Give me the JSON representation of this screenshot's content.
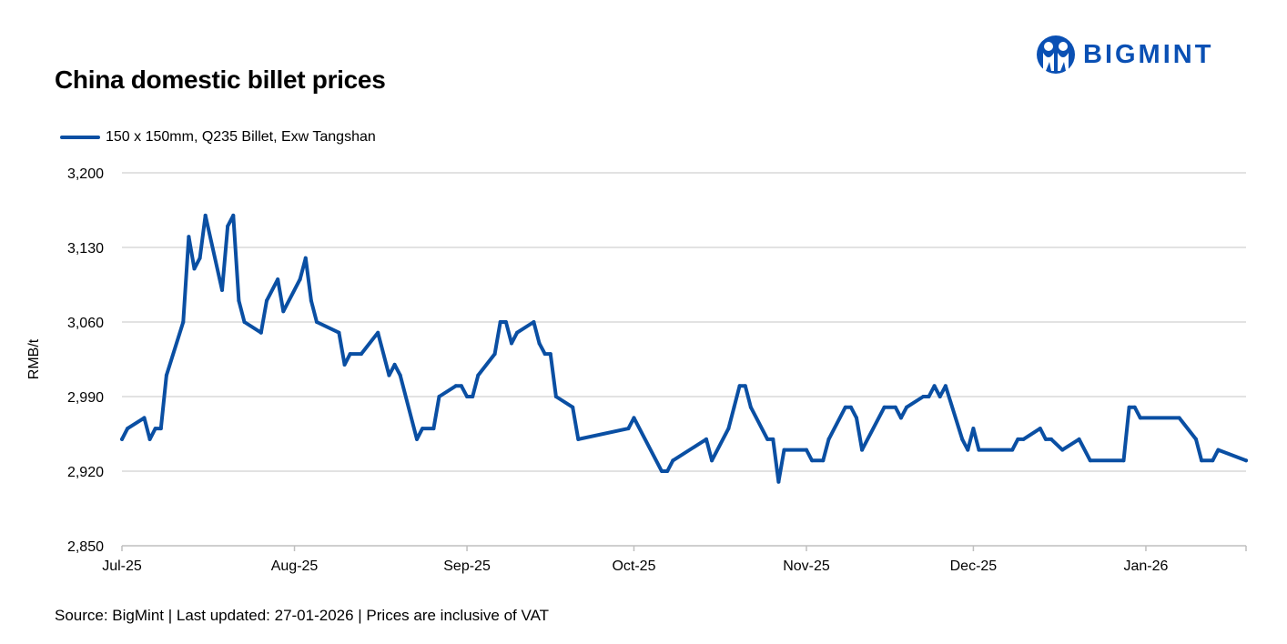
{
  "title": "China domestic billet prices",
  "logo": {
    "text": "BIGMINT",
    "color": "#0a50b4"
  },
  "source": "Source: BigMint | Last updated: 27-01-2026 | Prices are inclusive of VAT",
  "chart_data": {
    "type": "line",
    "title": "China domestic billet prices",
    "ylabel": "RMB/t",
    "xlabel": "",
    "ylim": [
      2850,
      3200
    ],
    "yticks": [
      "2,850",
      "2,920",
      "2,990",
      "3,060",
      "3,130",
      "3,200"
    ],
    "ytick_values": [
      2850,
      2920,
      2990,
      3060,
      3130,
      3200
    ],
    "xlim": [
      "2025-07-01",
      "2026-01-19"
    ],
    "xticks": [
      {
        "date": "2025-07-01",
        "label": "Jul-25"
      },
      {
        "date": "2025-08-01",
        "label": "Aug-25"
      },
      {
        "date": "2025-09-01",
        "label": "Sep-25"
      },
      {
        "date": "2025-10-01",
        "label": "Oct-25"
      },
      {
        "date": "2025-11-01",
        "label": "Nov-25"
      },
      {
        "date": "2025-12-01",
        "label": "Dec-25"
      },
      {
        "date": "2026-01-01",
        "label": "Jan-26"
      }
    ],
    "grid": true,
    "legend_position": "top-left",
    "series": [
      {
        "name": "150 x 150mm, Q235 Billet, Exw Tangshan",
        "color": "#0a4fa3",
        "x": [
          "2025-07-01",
          "2025-07-02",
          "2025-07-05",
          "2025-07-06",
          "2025-07-07",
          "2025-07-08",
          "2025-07-09",
          "2025-07-12",
          "2025-07-13",
          "2025-07-14",
          "2025-07-15",
          "2025-07-16",
          "2025-07-19",
          "2025-07-20",
          "2025-07-21",
          "2025-07-22",
          "2025-07-23",
          "2025-07-26",
          "2025-07-27",
          "2025-07-29",
          "2025-07-30",
          "2025-08-02",
          "2025-08-03",
          "2025-08-04",
          "2025-08-05",
          "2025-08-09",
          "2025-08-10",
          "2025-08-11",
          "2025-08-13",
          "2025-08-16",
          "2025-08-18",
          "2025-08-19",
          "2025-08-20",
          "2025-08-23",
          "2025-08-24",
          "2025-08-26",
          "2025-08-27",
          "2025-08-30",
          "2025-08-31",
          "2025-09-01",
          "2025-09-02",
          "2025-09-03",
          "2025-09-06",
          "2025-09-07",
          "2025-09-08",
          "2025-09-09",
          "2025-09-10",
          "2025-09-13",
          "2025-09-14",
          "2025-09-15",
          "2025-09-16",
          "2025-09-17",
          "2025-09-20",
          "2025-09-21",
          "2025-09-30",
          "2025-10-01",
          "2025-10-06",
          "2025-10-07",
          "2025-10-08",
          "2025-10-14",
          "2025-10-15",
          "2025-10-18",
          "2025-10-19",
          "2025-10-20",
          "2025-10-21",
          "2025-10-22",
          "2025-10-25",
          "2025-10-26",
          "2025-10-27",
          "2025-10-28",
          "2025-11-01",
          "2025-11-02",
          "2025-11-04",
          "2025-11-05",
          "2025-11-08",
          "2025-11-09",
          "2025-11-10",
          "2025-11-11",
          "2025-11-15",
          "2025-11-17",
          "2025-11-18",
          "2025-11-19",
          "2025-11-22",
          "2025-11-23",
          "2025-11-24",
          "2025-11-25",
          "2025-11-26",
          "2025-11-29",
          "2025-11-30",
          "2025-12-01",
          "2025-12-02",
          "2025-12-08",
          "2025-12-09",
          "2025-12-10",
          "2025-12-13",
          "2025-12-14",
          "2025-12-15",
          "2025-12-17",
          "2025-12-20",
          "2025-12-22",
          "2025-12-28",
          "2025-12-29",
          "2025-12-30",
          "2025-12-31",
          "2026-01-07",
          "2026-01-10",
          "2026-01-11",
          "2026-01-13",
          "2026-01-14",
          "2026-01-19"
        ],
        "values": [
          2950,
          2960,
          2970,
          2950,
          2960,
          2960,
          3010,
          3060,
          3140,
          3110,
          3120,
          3160,
          3090,
          3150,
          3160,
          3080,
          3060,
          3050,
          3080,
          3100,
          3070,
          3100,
          3120,
          3080,
          3060,
          3050,
          3020,
          3030,
          3030,
          3050,
          3010,
          3020,
          3010,
          2950,
          2960,
          2960,
          2990,
          3000,
          3000,
          2990,
          2990,
          3010,
          3030,
          3060,
          3060,
          3040,
          3050,
          3060,
          3040,
          3030,
          3030,
          2990,
          2980,
          2950,
          2960,
          2970,
          2920,
          2920,
          2930,
          2950,
          2930,
          2960,
          2980,
          3000,
          3000,
          2980,
          2950,
          2950,
          2910,
          2940,
          2940,
          2930,
          2930,
          2950,
          2980,
          2980,
          2970,
          2940,
          2980,
          2980,
          2970,
          2980,
          2990,
          2990,
          3000,
          2990,
          3000,
          2950,
          2940,
          2960,
          2940,
          2940,
          2950,
          2950,
          2960,
          2950,
          2950,
          2940,
          2950,
          2930,
          2930,
          2980,
          2980,
          2970,
          2970,
          2950,
          2930,
          2930,
          2940,
          2930
        ]
      }
    ]
  }
}
